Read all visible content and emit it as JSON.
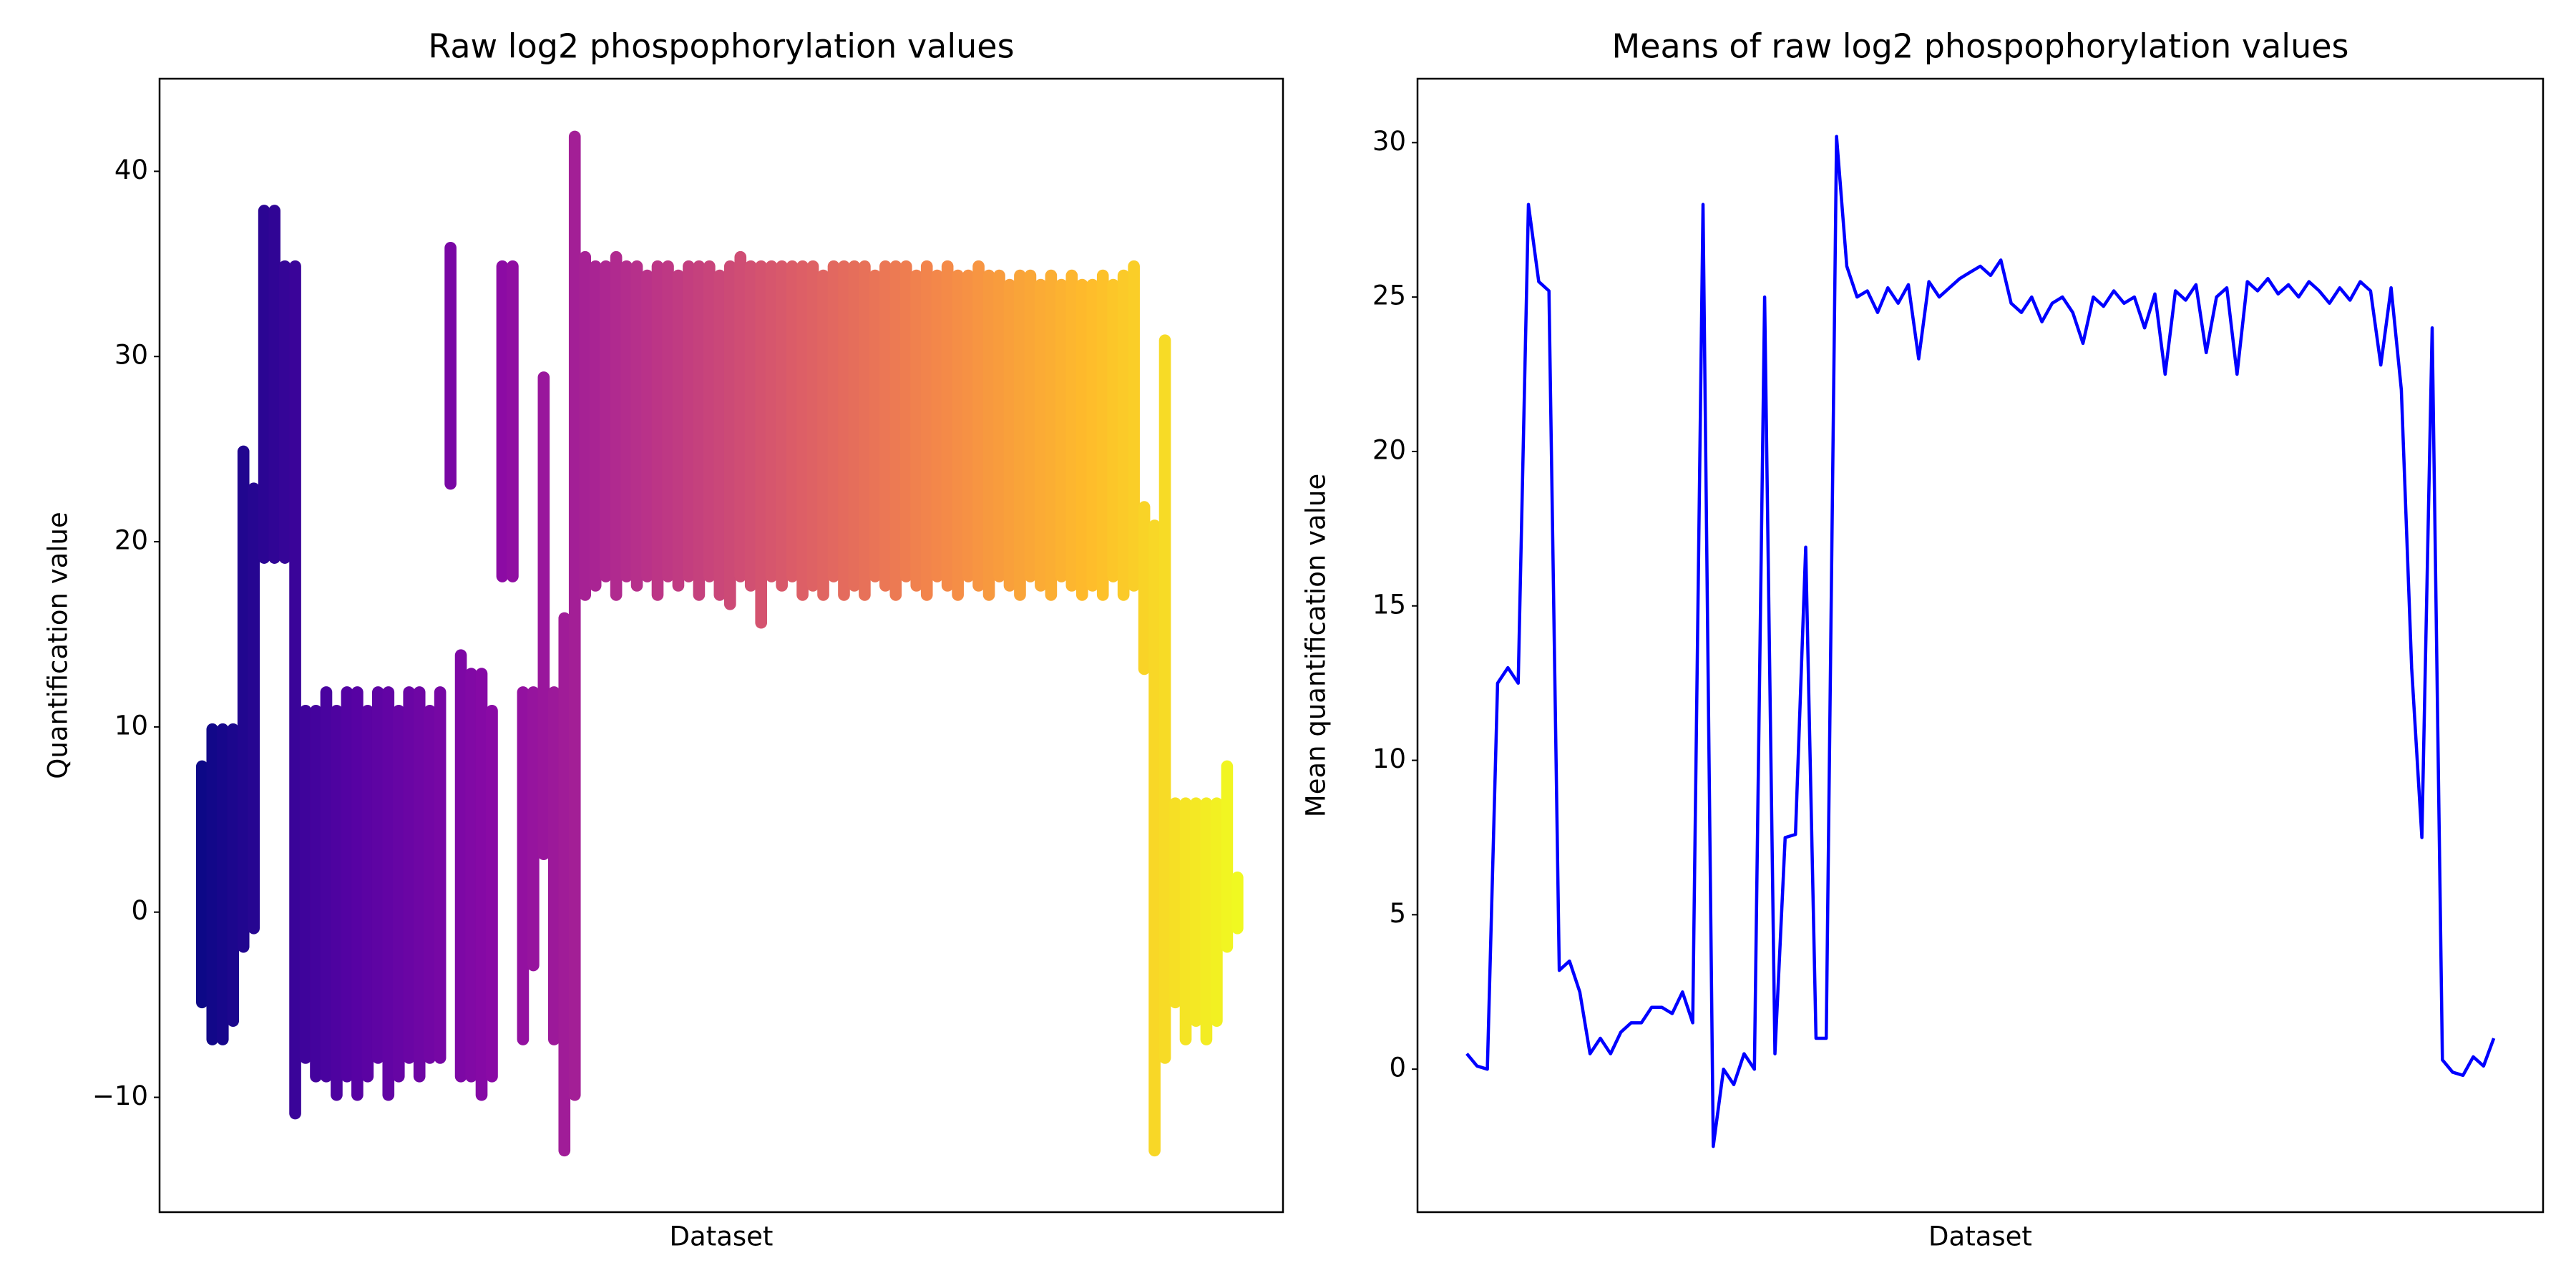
{
  "chart_data": [
    {
      "type": "range",
      "title": "Raw log2 phospophorylation values",
      "xlabel": "Dataset",
      "ylabel": "Quantification value",
      "colormap": "plasma",
      "x": [
        0,
        1,
        2,
        3,
        4,
        5,
        6,
        7,
        8,
        9,
        10,
        11,
        12,
        13,
        14,
        15,
        16,
        17,
        18,
        19,
        20,
        21,
        22,
        23,
        24,
        25,
        26,
        27,
        28,
        29,
        30,
        31,
        32,
        33,
        34,
        35,
        36,
        37,
        38,
        39,
        40,
        41,
        42,
        43,
        44,
        45,
        46,
        47,
        48,
        49,
        50,
        51,
        52,
        53,
        54,
        55,
        56,
        57,
        58,
        59,
        60,
        61,
        62,
        63,
        64,
        65,
        66,
        67,
        68,
        69,
        70,
        71,
        72,
        73,
        74,
        75,
        76,
        77,
        78,
        79,
        80,
        81,
        82,
        83,
        84,
        85,
        86,
        87,
        88,
        89,
        90,
        91,
        92,
        93,
        94,
        95,
        96,
        97,
        98,
        99,
        100
      ],
      "low": [
        -5,
        -7,
        -7,
        -6,
        -2,
        -1,
        19,
        19,
        19,
        -11,
        -8,
        -9,
        -9,
        -10,
        -9,
        -10,
        -9,
        -8,
        -10,
        -9,
        -8,
        -9,
        -8,
        -8,
        23,
        -9,
        -9,
        -10,
        -9,
        18,
        18,
        -7,
        -3,
        3,
        -7,
        -13,
        -10,
        17,
        17.5,
        18,
        17,
        18,
        17.5,
        18,
        17,
        18,
        17.5,
        18,
        17,
        18,
        17,
        16.5,
        18,
        17.5,
        15.5,
        18,
        17.5,
        18,
        17,
        17.5,
        17,
        18,
        17,
        17.5,
        17,
        18,
        17.5,
        17,
        18,
        17.5,
        17,
        18,
        17.5,
        17,
        18,
        17.5,
        17,
        18,
        17.5,
        17,
        18,
        17.5,
        17,
        18,
        17.5,
        17,
        17.5,
        17,
        18,
        17,
        17.5,
        13,
        -13,
        -8,
        -5,
        -7,
        -6,
        -7,
        -6,
        -2,
        -1
      ],
      "high": [
        8,
        10,
        10,
        10,
        25,
        23,
        38,
        38,
        35,
        35,
        11,
        11,
        12,
        11,
        12,
        12,
        11,
        12,
        12,
        11,
        12,
        12,
        11,
        12,
        36,
        14,
        13,
        13,
        11,
        35,
        35,
        12,
        12,
        29,
        12,
        16,
        42,
        35.5,
        35,
        35,
        35.5,
        35,
        35,
        34.5,
        35,
        35,
        34.5,
        35,
        35,
        35,
        34.5,
        35,
        35.5,
        35,
        35,
        35,
        35,
        35,
        35,
        35,
        34.5,
        35,
        35,
        35,
        35,
        34.5,
        35,
        35,
        35,
        34.5,
        35,
        34.5,
        35,
        34.5,
        34.5,
        35,
        34.5,
        34.5,
        34,
        34.5,
        34.5,
        34,
        34.5,
        34,
        34.5,
        34,
        34,
        34.5,
        34,
        34.5,
        35,
        22,
        21,
        31,
        6,
        6,
        6,
        6,
        6,
        8,
        2
      ],
      "xlim": [
        -4.1,
        104.4
      ],
      "ylim": [
        -16.2,
        45
      ],
      "yticks": [
        {
          "value": -10,
          "label": "−10"
        },
        0,
        10,
        20,
        30,
        40
      ]
    },
    {
      "type": "line",
      "title": "Means of raw log2 phospophorylation values",
      "xlabel": "Dataset",
      "ylabel": "Mean quantification value",
      "color": "#0000ff",
      "x": [
        0,
        1,
        2,
        3,
        4,
        5,
        6,
        7,
        8,
        9,
        10,
        11,
        12,
        13,
        14,
        15,
        16,
        17,
        18,
        19,
        20,
        21,
        22,
        23,
        24,
        25,
        26,
        27,
        28,
        29,
        30,
        31,
        32,
        33,
        34,
        35,
        36,
        37,
        38,
        39,
        40,
        41,
        42,
        43,
        44,
        45,
        46,
        47,
        48,
        49,
        50,
        51,
        52,
        53,
        54,
        55,
        56,
        57,
        58,
        59,
        60,
        61,
        62,
        63,
        64,
        65,
        66,
        67,
        68,
        69,
        70,
        71,
        72,
        73,
        74,
        75,
        76,
        77,
        78,
        79,
        80,
        81,
        82,
        83,
        84,
        85,
        86,
        87,
        88,
        89,
        90,
        91,
        92,
        93,
        94,
        95,
        96,
        97,
        98,
        99,
        100
      ],
      "values": [
        0.5,
        0.1,
        0.0,
        12.5,
        13,
        12.5,
        28,
        25.5,
        25.2,
        3.2,
        3.5,
        2.5,
        0.5,
        1,
        0.5,
        1.2,
        1.5,
        1.5,
        2,
        2,
        1.8,
        2.5,
        1.5,
        28,
        -2.5,
        0,
        -0.5,
        0.5,
        0,
        25,
        0.5,
        7.5,
        7.6,
        16.9,
        1,
        1,
        30.2,
        26,
        25,
        25.2,
        24.5,
        25.3,
        24.8,
        25.4,
        23,
        25.5,
        25,
        25.3,
        25.6,
        25.8,
        26,
        25.7,
        26.2,
        24.8,
        24.5,
        25,
        24.2,
        24.8,
        25,
        24.5,
        23.5,
        25,
        24.7,
        25.2,
        24.8,
        25,
        24,
        25.1,
        22.5,
        25.2,
        24.9,
        25.4,
        23.2,
        25,
        25.3,
        22.5,
        25.5,
        25.2,
        25.6,
        25.1,
        25.4,
        25,
        25.5,
        25.2,
        24.8,
        25.3,
        24.9,
        25.5,
        25.2,
        22.8,
        25.3,
        22,
        13,
        7.5,
        24,
        0.3,
        -0.1,
        -0.2,
        0.4,
        0.1,
        1
      ],
      "xlim": [
        -4.8,
        104.8
      ],
      "ylim": [
        -4.63,
        32.07
      ],
      "yticks": [
        0,
        5,
        10,
        15,
        20,
        25,
        30
      ]
    }
  ]
}
